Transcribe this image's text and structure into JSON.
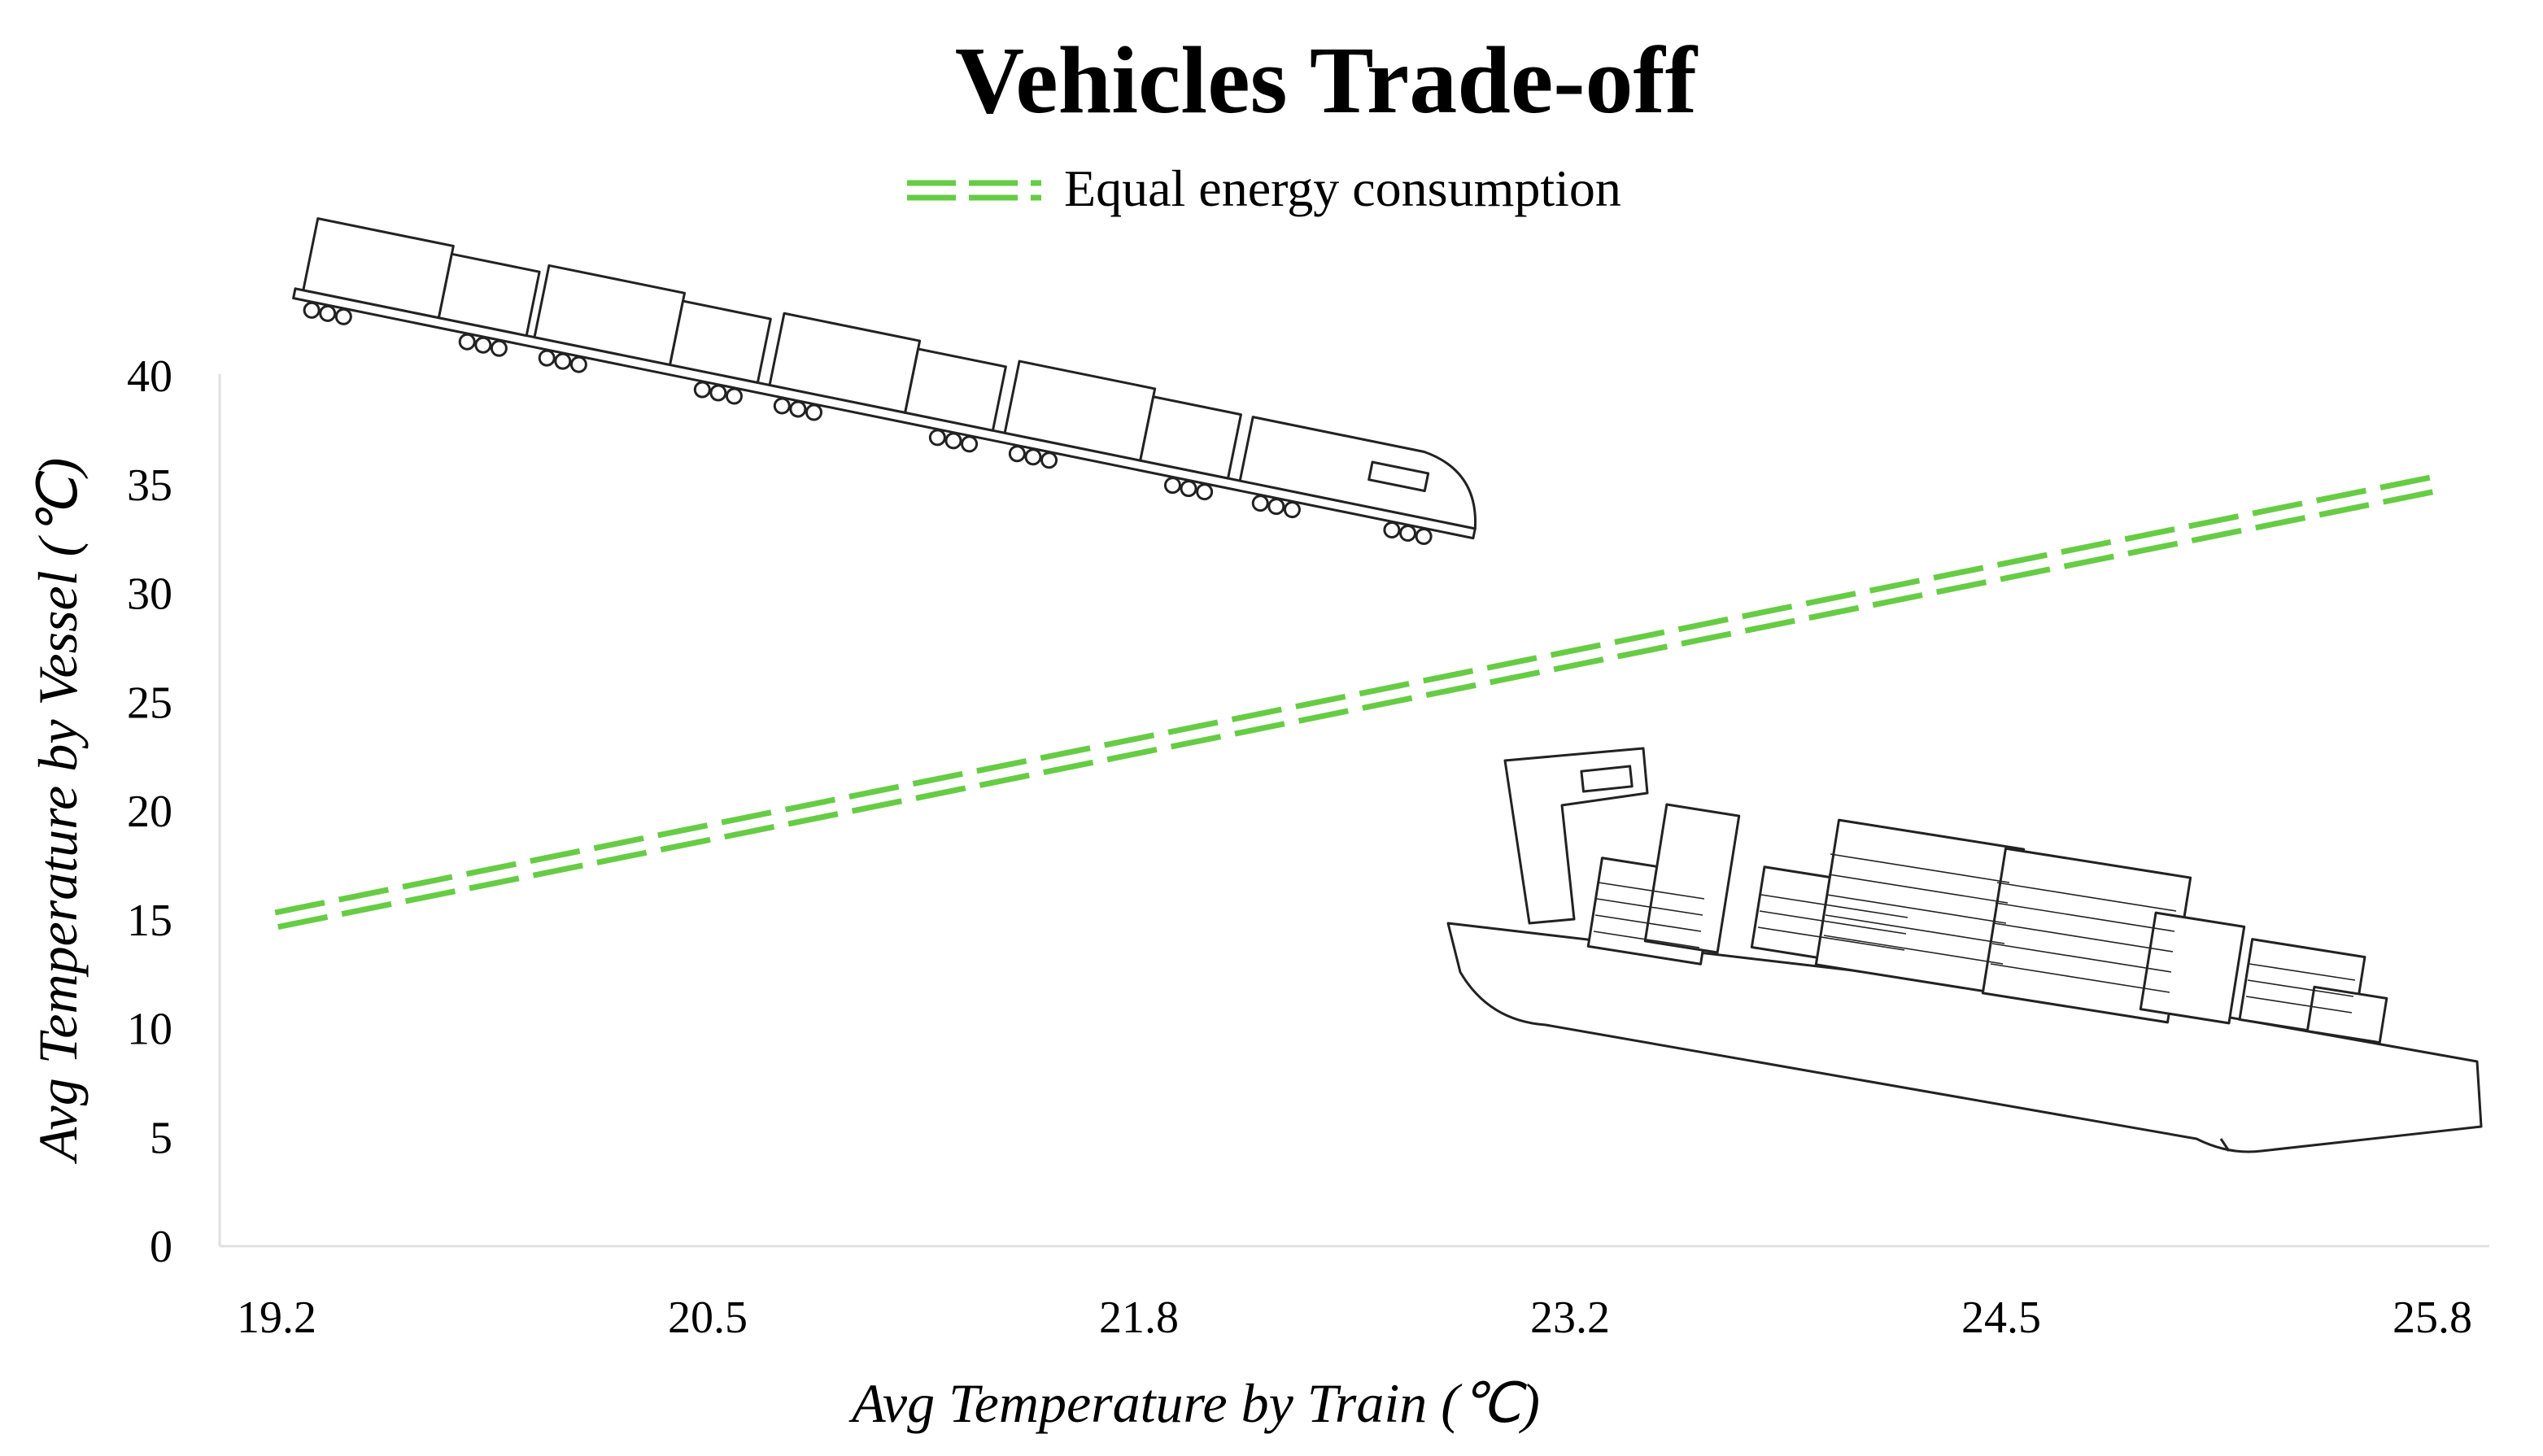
{
  "chart_data": {
    "type": "line",
    "title": "Vehicles Trade-off",
    "xlabel": "Avg Temperature by Train (℃)",
    "ylabel": "Avg Temperature by Vessel (℃)",
    "x_ticks": [
      "19.2",
      "20.5",
      "21.8",
      "23.2",
      "24.5",
      "25.8"
    ],
    "y_ticks": [
      "0",
      "5",
      "10",
      "15",
      "20",
      "25",
      "30",
      "35",
      "40"
    ],
    "xlim": [
      19.2,
      25.8
    ],
    "ylim": [
      0,
      40
    ],
    "legend_position": "top-center",
    "series": [
      {
        "name": "Equal energy consumption",
        "style": "double-dashed",
        "color": "#66cc44",
        "x": [
          19.2,
          25.8
        ],
        "y": [
          15,
          35
        ]
      }
    ],
    "illustrations": [
      "train-icon",
      "container-ship-icon"
    ]
  }
}
